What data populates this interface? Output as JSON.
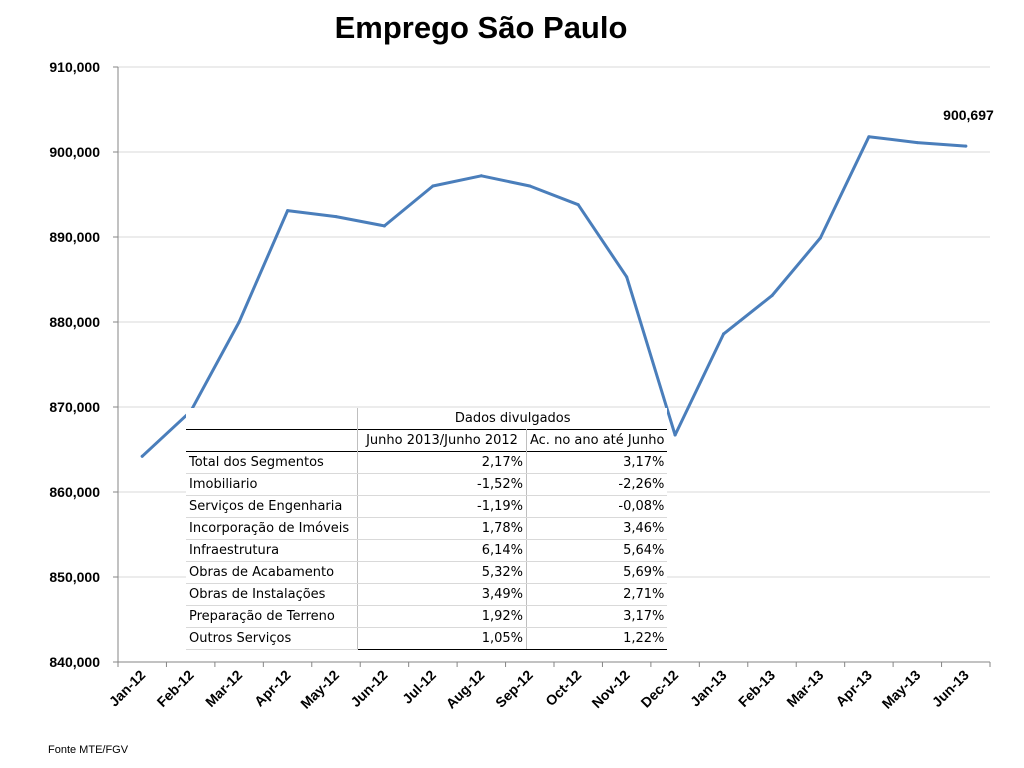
{
  "chart_data": {
    "type": "line",
    "title": "Emprego São Paulo",
    "xlabel": "",
    "ylabel": "",
    "categories": [
      "Jan-12",
      "Feb-12",
      "Mar-12",
      "Apr-12",
      "May-12",
      "Jun-12",
      "Jul-12",
      "Aug-12",
      "Sep-12",
      "Oct-12",
      "Nov-12",
      "Dec-12",
      "Jan-13",
      "Feb-13",
      "Mar-13",
      "Apr-13",
      "May-13",
      "Jun-13"
    ],
    "series": [
      {
        "values": [
          864200,
          869500,
          880000,
          893100,
          892400,
          891300,
          896000,
          897200,
          896000,
          893800,
          885300,
          866700,
          878600,
          883100,
          889900,
          901800,
          901100,
          900697
        ],
        "color": "#4a7ebb"
      }
    ],
    "ylim": [
      840000,
      910000
    ],
    "yticks": [
      "840,000",
      "850,000",
      "860,000",
      "870,000",
      "880,000",
      "890,000",
      "900,000",
      "910,000"
    ],
    "ytick_values": [
      840000,
      850000,
      860000,
      870000,
      880000,
      890000,
      900000,
      910000
    ],
    "data_label": {
      "index": 17,
      "text": "900,697"
    },
    "grid": true,
    "gridline_color": "#d9d9d9"
  },
  "source_note": "Fonte MTE/FGV",
  "table": {
    "group_header": "Dados divulgados",
    "col_headers": [
      "Junho 2013/Junho 2012",
      "Ac. no ano até Junho"
    ],
    "rows": [
      {
        "label": "Total dos Segmentos",
        "v1": "2,17%",
        "v2": "3,17%"
      },
      {
        "label": "Imobiliario",
        "v1": "-1,52%",
        "v2": "-2,26%"
      },
      {
        "label": "Serviços de Engenharia",
        "v1": "-1,19%",
        "v2": "-0,08%"
      },
      {
        "label": "Incorporação de Imóveis",
        "v1": "1,78%",
        "v2": "3,46%"
      },
      {
        "label": "Infraestrutura",
        "v1": "6,14%",
        "v2": "5,64%"
      },
      {
        "label": "Obras de Acabamento",
        "v1": "5,32%",
        "v2": "5,69%"
      },
      {
        "label": "Obras de Instalações",
        "v1": "3,49%",
        "v2": "2,71%"
      },
      {
        "label": "Preparação de Terreno",
        "v1": "1,92%",
        "v2": "3,17%"
      },
      {
        "label": "Outros Serviços",
        "v1": "1,05%",
        "v2": "1,22%"
      }
    ]
  }
}
